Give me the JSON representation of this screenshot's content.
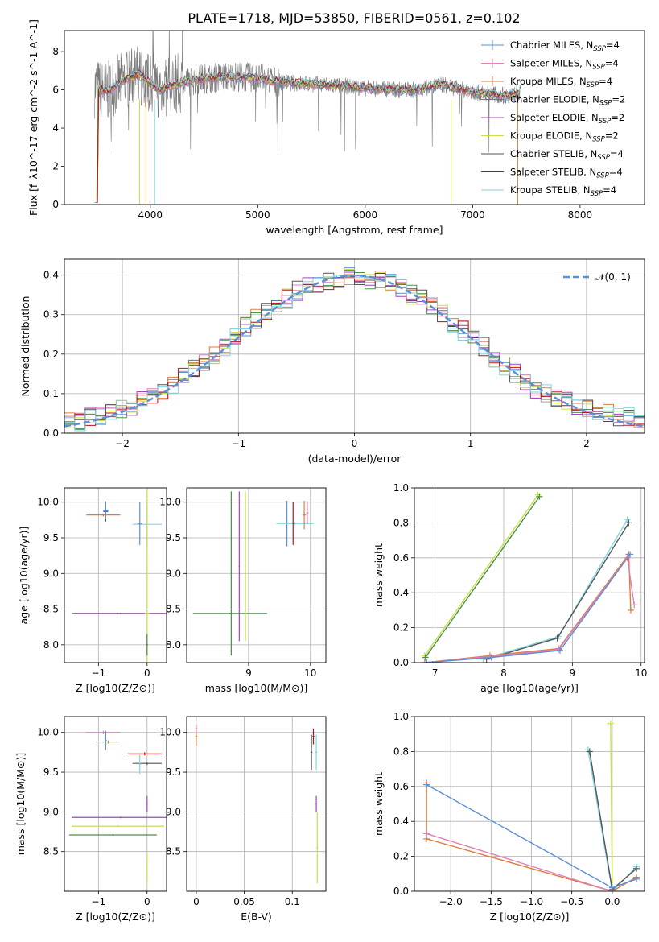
{
  "title": "PLATE=1718, MJD=53850, FIBERID=0561, z=0.102",
  "colors": {
    "chabrier_miles": "#5b8fd6",
    "salpeter_miles": "#e07fb8",
    "kroupa_miles": "#e07b39",
    "chabrier_elodie": "#4a8f4a",
    "salpeter_elodie": "#a442c9",
    "kroupa_elodie": "#c8e04a",
    "chabrier_stelib": "#555555",
    "salpeter_stelib": "#b5121b",
    "kroupa_stelib": "#7fd6e0",
    "normal": "#5b8fd6",
    "grid": "#b0b0b0"
  },
  "chart_data": [
    {
      "id": "spectrum",
      "type": "line",
      "xlabel": "wavelength [Angstrom, rest frame]",
      "ylabel": "Flux [f_λ10^-17 erg cm^-2 s^-1 A^-1]",
      "xlim": [
        3200,
        8600
      ],
      "ylim": [
        0,
        9.1
      ],
      "xticks": [
        4000,
        5000,
        6000,
        7000,
        8000
      ],
      "yticks": [
        0,
        2,
        4,
        6,
        8
      ],
      "legend_position": "top-right",
      "series": [
        {
          "name": "Chabrier MILES, N_SSP=4",
          "color_key": "chabrier_miles"
        },
        {
          "name": "Salpeter MILES, N_SSP=4",
          "color_key": "salpeter_miles"
        },
        {
          "name": "Kroupa MILES, N_SSP=4",
          "color_key": "kroupa_miles"
        },
        {
          "name": "Chabrier ELODIE, N_SSP=2",
          "color_key": "chabrier_elodie"
        },
        {
          "name": "Salpeter ELODIE, N_SSP=2",
          "color_key": "salpeter_elodie"
        },
        {
          "name": "Kroupa ELODIE, N_SSP=2",
          "color_key": "kroupa_elodie"
        },
        {
          "name": "Chabrier STELIB, N_SSP=4",
          "color_key": "chabrier_stelib"
        },
        {
          "name": "Salpeter STELIB, N_SSP=4",
          "color_key": "salpeter_stelib"
        },
        {
          "name": "Kroupa STELIB, N_SSP=4",
          "color_key": "kroupa_stelib"
        }
      ],
      "data_envelope": {
        "x": [
          3500,
          3600,
          3700,
          3800,
          3900,
          4000,
          4100,
          4200,
          4300,
          4500,
          4800,
          5000,
          5200,
          5500,
          5800,
          6000,
          6300,
          6500,
          6700,
          6900,
          7100,
          7300,
          7500
        ],
        "y": [
          6.1,
          5.9,
          6.3,
          6.6,
          6.8,
          6.3,
          6.0,
          6.2,
          6.4,
          6.6,
          6.7,
          6.6,
          6.4,
          6.3,
          6.2,
          6.1,
          6.0,
          6.0,
          6.3,
          6.0,
          5.8,
          5.7,
          5.9
        ]
      }
    },
    {
      "id": "residuals",
      "type": "bar",
      "xlabel": "(data-model)/error",
      "ylabel": "Normed distribution",
      "xlim": [
        -2.5,
        2.5
      ],
      "ylim": [
        0,
        0.44
      ],
      "xticks": [
        -2,
        -1,
        0,
        1,
        2
      ],
      "yticks": [
        0.0,
        0.1,
        0.2,
        0.3,
        0.4
      ],
      "legend": "𝒩(0, 1)",
      "histogram": [
        0.03,
        0.03,
        0.04,
        0.04,
        0.05,
        0.06,
        0.07,
        0.08,
        0.1,
        0.11,
        0.12,
        0.14,
        0.16,
        0.18,
        0.2,
        0.22,
        0.24,
        0.27,
        0.29,
        0.31,
        0.33,
        0.34,
        0.36,
        0.37,
        0.38,
        0.38,
        0.39,
        0.4,
        0.4,
        0.39,
        0.39,
        0.38,
        0.37,
        0.35,
        0.34,
        0.32,
        0.3,
        0.28,
        0.26,
        0.24,
        0.22,
        0.19,
        0.17,
        0.15,
        0.13,
        0.11,
        0.1,
        0.09,
        0.08,
        0.07,
        0.06,
        0.05,
        0.05,
        0.04,
        0.04,
        0.03
      ]
    },
    {
      "id": "age_vs_Z",
      "type": "scatter",
      "xlabel": "Z [log10(Z/Z⊙)]",
      "ylabel": "age  [log10(age/yr)]",
      "xlim": [
        -1.7,
        0.4
      ],
      "ylim": [
        7.75,
        10.2
      ],
      "xticks": [
        -1,
        0
      ],
      "yticks": [
        8.0,
        8.5,
        9.0,
        9.5,
        10.0
      ]
    },
    {
      "id": "age_vs_mass",
      "type": "scatter",
      "xlabel": "mass [log10(M/M⊙)]",
      "ylabel": "",
      "xlim": [
        8.0,
        10.25
      ],
      "ylim": [
        7.75,
        10.2
      ],
      "xticks": [
        9,
        10
      ],
      "yticks": [
        8.0,
        8.5,
        9.0,
        9.5,
        10.0
      ]
    },
    {
      "id": "massweight_vs_age",
      "type": "line",
      "xlabel": "age  [log10(age/yr)]",
      "ylabel": "mass weight",
      "xlim": [
        6.7,
        10.05
      ],
      "ylim": [
        0,
        1
      ],
      "xticks": [
        7,
        8,
        9,
        10
      ],
      "yticks": [
        0.0,
        0.2,
        0.4,
        0.6,
        0.8,
        1.0
      ]
    },
    {
      "id": "mass_vs_Z",
      "type": "scatter",
      "xlabel": "Z [log10(Z/Z⊙)]",
      "ylabel": "mass [log10(M/M⊙)]",
      "xlim": [
        -1.7,
        0.4
      ],
      "ylim": [
        8.0,
        10.2
      ],
      "xticks": [
        -1,
        0
      ],
      "yticks": [
        8.5,
        9.0,
        9.5,
        10.0
      ]
    },
    {
      "id": "mass_vs_ebv",
      "type": "scatter",
      "xlabel": "E(B-V)",
      "ylabel": "",
      "xlim": [
        -0.01,
        0.135
      ],
      "ylim": [
        8.0,
        10.2
      ],
      "xticks": [
        0.0,
        0.05,
        0.1
      ],
      "yticks": [
        8.5,
        9.0,
        9.5,
        10.0
      ]
    },
    {
      "id": "massweight_vs_Z",
      "type": "line",
      "xlabel": "Z [log10(Z/Z⊙)]",
      "ylabel": "mass weight",
      "xlim": [
        -2.45,
        0.4
      ],
      "ylim": [
        0,
        1
      ],
      "xticks": [
        -2.0,
        -1.5,
        -1.0,
        -0.5,
        0.0
      ],
      "yticks": [
        0.0,
        0.2,
        0.4,
        0.6,
        0.8,
        1.0
      ]
    }
  ]
}
